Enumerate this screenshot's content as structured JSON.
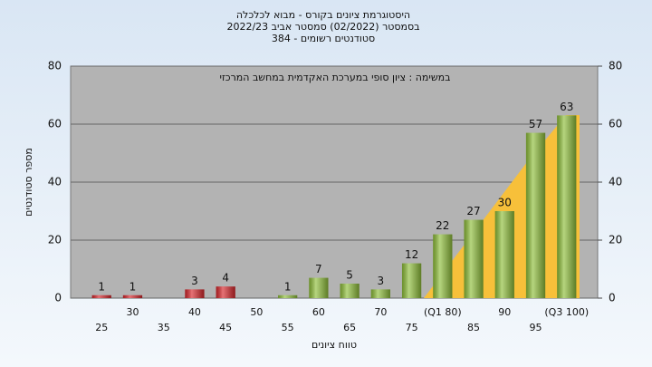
{
  "chart_data": {
    "type": "bar",
    "title": "היסטוגרמת ציונים בקורס - מבוא לכלכלה",
    "subtitle": "בסמסטר (02/2022) סמסטר אביב 2022/23",
    "subtitle2": "סטודנטים רשומים - 384",
    "annotation": "במשימה : ציון סופי במערכת האקדמית במחשב המרכזי",
    "xlabel": "טווח ציונים",
    "ylabel": "מספר סטודנטים",
    "categories": [
      "25",
      "30",
      "35",
      "40",
      "45",
      "50",
      "55",
      "60",
      "65",
      "70",
      "75",
      "(Q1 80)",
      "85",
      "90",
      "95",
      "(Q3 100)"
    ],
    "values": [
      1,
      1,
      0,
      3,
      4,
      0,
      1,
      7,
      5,
      3,
      12,
      22,
      27,
      30,
      57,
      63
    ],
    "colors": [
      "#d8262b",
      "#d8262b",
      "#d8262b",
      "#d8262b",
      "#d8262b",
      "#8fbf3a",
      "#8fbf3a",
      "#8fbf3a",
      "#8fbf3a",
      "#8fbf3a",
      "#8fbf3a",
      "#8fbf3a",
      "#8fbf3a",
      "#8fbf3a",
      "#8fbf3a",
      "#8fbf3a"
    ],
    "ylim": [
      0,
      80
    ],
    "yticks": [
      0,
      20,
      40,
      60,
      80
    ],
    "y2lim": [
      0,
      80
    ],
    "y2ticks": [
      0,
      20,
      40,
      60,
      80
    ],
    "grid": true
  }
}
